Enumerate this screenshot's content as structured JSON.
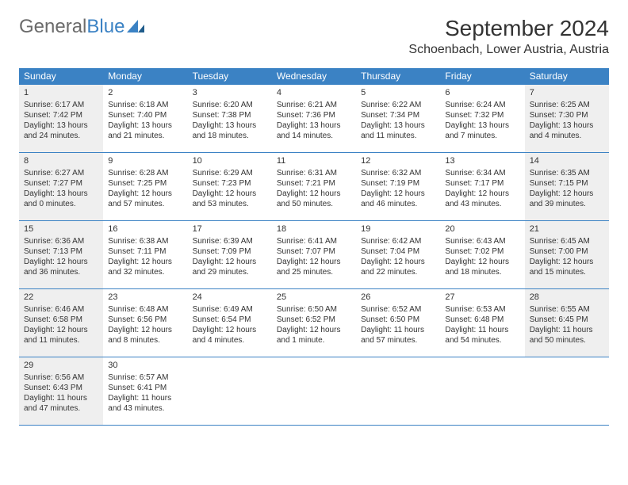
{
  "brand": {
    "part1": "General",
    "part2": "Blue"
  },
  "title": "September 2024",
  "location": "Schoenbach, Lower Austria, Austria",
  "colors": {
    "header_bg": "#3b82c4",
    "header_text": "#ffffff",
    "border": "#3b82c4",
    "shaded": "#efefef",
    "text": "#333333",
    "logo_gray": "#6b6b6b",
    "logo_blue": "#3b82c4"
  },
  "day_headers": [
    "Sunday",
    "Monday",
    "Tuesday",
    "Wednesday",
    "Thursday",
    "Friday",
    "Saturday"
  ],
  "weeks": [
    [
      {
        "n": "1",
        "shaded": true,
        "sr": "Sunrise: 6:17 AM",
        "ss": "Sunset: 7:42 PM",
        "d1": "Daylight: 13 hours",
        "d2": "and 24 minutes."
      },
      {
        "n": "2",
        "shaded": false,
        "sr": "Sunrise: 6:18 AM",
        "ss": "Sunset: 7:40 PM",
        "d1": "Daylight: 13 hours",
        "d2": "and 21 minutes."
      },
      {
        "n": "3",
        "shaded": false,
        "sr": "Sunrise: 6:20 AM",
        "ss": "Sunset: 7:38 PM",
        "d1": "Daylight: 13 hours",
        "d2": "and 18 minutes."
      },
      {
        "n": "4",
        "shaded": false,
        "sr": "Sunrise: 6:21 AM",
        "ss": "Sunset: 7:36 PM",
        "d1": "Daylight: 13 hours",
        "d2": "and 14 minutes."
      },
      {
        "n": "5",
        "shaded": false,
        "sr": "Sunrise: 6:22 AM",
        "ss": "Sunset: 7:34 PM",
        "d1": "Daylight: 13 hours",
        "d2": "and 11 minutes."
      },
      {
        "n": "6",
        "shaded": false,
        "sr": "Sunrise: 6:24 AM",
        "ss": "Sunset: 7:32 PM",
        "d1": "Daylight: 13 hours",
        "d2": "and 7 minutes."
      },
      {
        "n": "7",
        "shaded": true,
        "sr": "Sunrise: 6:25 AM",
        "ss": "Sunset: 7:30 PM",
        "d1": "Daylight: 13 hours",
        "d2": "and 4 minutes."
      }
    ],
    [
      {
        "n": "8",
        "shaded": true,
        "sr": "Sunrise: 6:27 AM",
        "ss": "Sunset: 7:27 PM",
        "d1": "Daylight: 13 hours",
        "d2": "and 0 minutes."
      },
      {
        "n": "9",
        "shaded": false,
        "sr": "Sunrise: 6:28 AM",
        "ss": "Sunset: 7:25 PM",
        "d1": "Daylight: 12 hours",
        "d2": "and 57 minutes."
      },
      {
        "n": "10",
        "shaded": false,
        "sr": "Sunrise: 6:29 AM",
        "ss": "Sunset: 7:23 PM",
        "d1": "Daylight: 12 hours",
        "d2": "and 53 minutes."
      },
      {
        "n": "11",
        "shaded": false,
        "sr": "Sunrise: 6:31 AM",
        "ss": "Sunset: 7:21 PM",
        "d1": "Daylight: 12 hours",
        "d2": "and 50 minutes."
      },
      {
        "n": "12",
        "shaded": false,
        "sr": "Sunrise: 6:32 AM",
        "ss": "Sunset: 7:19 PM",
        "d1": "Daylight: 12 hours",
        "d2": "and 46 minutes."
      },
      {
        "n": "13",
        "shaded": false,
        "sr": "Sunrise: 6:34 AM",
        "ss": "Sunset: 7:17 PM",
        "d1": "Daylight: 12 hours",
        "d2": "and 43 minutes."
      },
      {
        "n": "14",
        "shaded": true,
        "sr": "Sunrise: 6:35 AM",
        "ss": "Sunset: 7:15 PM",
        "d1": "Daylight: 12 hours",
        "d2": "and 39 minutes."
      }
    ],
    [
      {
        "n": "15",
        "shaded": true,
        "sr": "Sunrise: 6:36 AM",
        "ss": "Sunset: 7:13 PM",
        "d1": "Daylight: 12 hours",
        "d2": "and 36 minutes."
      },
      {
        "n": "16",
        "shaded": false,
        "sr": "Sunrise: 6:38 AM",
        "ss": "Sunset: 7:11 PM",
        "d1": "Daylight: 12 hours",
        "d2": "and 32 minutes."
      },
      {
        "n": "17",
        "shaded": false,
        "sr": "Sunrise: 6:39 AM",
        "ss": "Sunset: 7:09 PM",
        "d1": "Daylight: 12 hours",
        "d2": "and 29 minutes."
      },
      {
        "n": "18",
        "shaded": false,
        "sr": "Sunrise: 6:41 AM",
        "ss": "Sunset: 7:07 PM",
        "d1": "Daylight: 12 hours",
        "d2": "and 25 minutes."
      },
      {
        "n": "19",
        "shaded": false,
        "sr": "Sunrise: 6:42 AM",
        "ss": "Sunset: 7:04 PM",
        "d1": "Daylight: 12 hours",
        "d2": "and 22 minutes."
      },
      {
        "n": "20",
        "shaded": false,
        "sr": "Sunrise: 6:43 AM",
        "ss": "Sunset: 7:02 PM",
        "d1": "Daylight: 12 hours",
        "d2": "and 18 minutes."
      },
      {
        "n": "21",
        "shaded": true,
        "sr": "Sunrise: 6:45 AM",
        "ss": "Sunset: 7:00 PM",
        "d1": "Daylight: 12 hours",
        "d2": "and 15 minutes."
      }
    ],
    [
      {
        "n": "22",
        "shaded": true,
        "sr": "Sunrise: 6:46 AM",
        "ss": "Sunset: 6:58 PM",
        "d1": "Daylight: 12 hours",
        "d2": "and 11 minutes."
      },
      {
        "n": "23",
        "shaded": false,
        "sr": "Sunrise: 6:48 AM",
        "ss": "Sunset: 6:56 PM",
        "d1": "Daylight: 12 hours",
        "d2": "and 8 minutes."
      },
      {
        "n": "24",
        "shaded": false,
        "sr": "Sunrise: 6:49 AM",
        "ss": "Sunset: 6:54 PM",
        "d1": "Daylight: 12 hours",
        "d2": "and 4 minutes."
      },
      {
        "n": "25",
        "shaded": false,
        "sr": "Sunrise: 6:50 AM",
        "ss": "Sunset: 6:52 PM",
        "d1": "Daylight: 12 hours",
        "d2": "and 1 minute."
      },
      {
        "n": "26",
        "shaded": false,
        "sr": "Sunrise: 6:52 AM",
        "ss": "Sunset: 6:50 PM",
        "d1": "Daylight: 11 hours",
        "d2": "and 57 minutes."
      },
      {
        "n": "27",
        "shaded": false,
        "sr": "Sunrise: 6:53 AM",
        "ss": "Sunset: 6:48 PM",
        "d1": "Daylight: 11 hours",
        "d2": "and 54 minutes."
      },
      {
        "n": "28",
        "shaded": true,
        "sr": "Sunrise: 6:55 AM",
        "ss": "Sunset: 6:45 PM",
        "d1": "Daylight: 11 hours",
        "d2": "and 50 minutes."
      }
    ],
    [
      {
        "n": "29",
        "shaded": true,
        "sr": "Sunrise: 6:56 AM",
        "ss": "Sunset: 6:43 PM",
        "d1": "Daylight: 11 hours",
        "d2": "and 47 minutes."
      },
      {
        "n": "30",
        "shaded": false,
        "sr": "Sunrise: 6:57 AM",
        "ss": "Sunset: 6:41 PM",
        "d1": "Daylight: 11 hours",
        "d2": "and 43 minutes."
      },
      null,
      null,
      null,
      null,
      null
    ]
  ]
}
